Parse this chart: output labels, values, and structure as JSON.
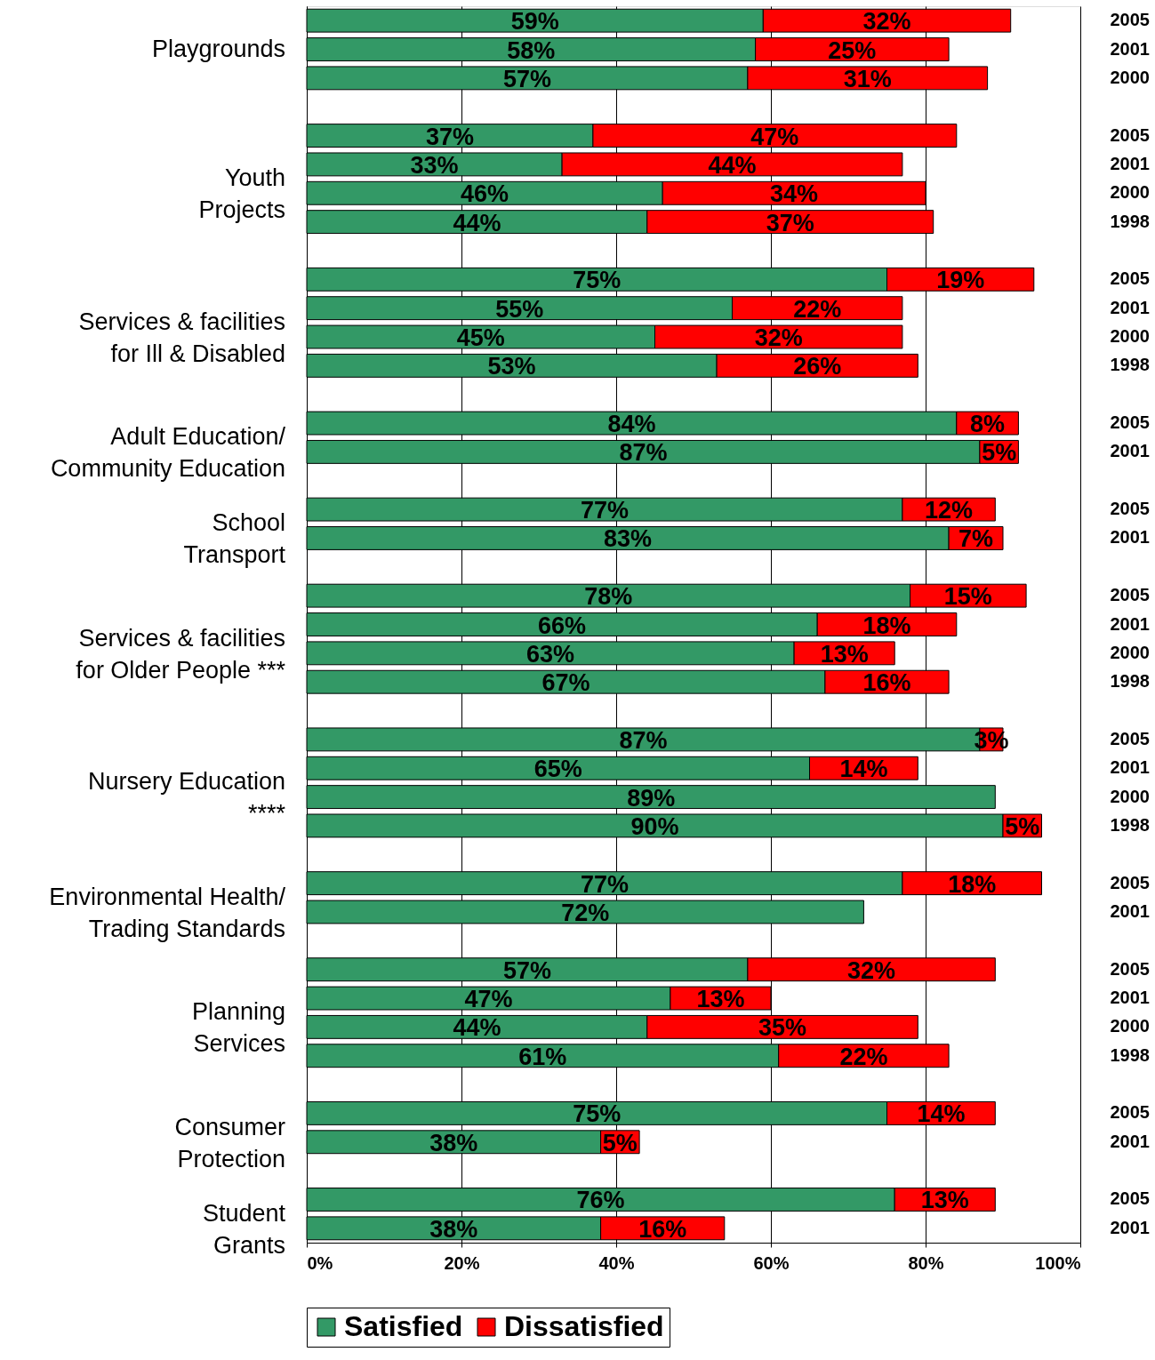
{
  "chart_data": {
    "type": "bar",
    "orientation": "horizontal",
    "stacked": true,
    "categories": [
      "2005",
      "2001",
      "2000",
      null,
      "2005",
      "2001",
      "2000",
      "1998",
      null,
      "2005",
      "2001",
      "2000",
      "1998",
      null,
      "2005",
      "2001",
      null,
      "2005",
      "2001",
      null,
      "2005",
      "2001",
      "2000",
      "1998",
      null,
      "2005",
      "2001",
      "2000",
      "1998",
      null,
      "2005",
      "2001",
      null,
      "2005",
      "2001",
      "2000",
      "1998",
      null,
      "2005",
      "2001",
      null,
      "2005",
      "2001"
    ],
    "series": [
      {
        "name": "Satisfied",
        "color": "#339966",
        "values": [
          59,
          58,
          57,
          null,
          37,
          33,
          46,
          44,
          null,
          75,
          55,
          45,
          53,
          null,
          84,
          87,
          null,
          77,
          83,
          null,
          78,
          66,
          63,
          67,
          null,
          87,
          65,
          89,
          90,
          null,
          77,
          72,
          null,
          57,
          47,
          44,
          61,
          null,
          75,
          38,
          null,
          76,
          38
        ],
        "value_labels": [
          "59%",
          "58%",
          "57%",
          null,
          "37%",
          "33%",
          "46%",
          "44%",
          null,
          "75%",
          "55%",
          "45%",
          "53%",
          null,
          "84%",
          "87%",
          null,
          "77%",
          "83%",
          null,
          "78%",
          "66%",
          "63%",
          "67%",
          null,
          "87%",
          "65%",
          "89%",
          "90%",
          null,
          "77%",
          "72%",
          null,
          "57%",
          "47%",
          "44%",
          "61%",
          null,
          "75%",
          "38%",
          null,
          "76%",
          "38%"
        ]
      },
      {
        "name": "Dissatisfied",
        "color": "#ff0000",
        "values": [
          32,
          25,
          31,
          null,
          47,
          44,
          34,
          37,
          null,
          19,
          22,
          32,
          26,
          null,
          8,
          5,
          null,
          12,
          7,
          null,
          15,
          18,
          13,
          16,
          null,
          3,
          14,
          null,
          5,
          null,
          18,
          null,
          null,
          32,
          13,
          35,
          22,
          null,
          14,
          5,
          null,
          13,
          16
        ],
        "value_labels": [
          "32%",
          "25%",
          "31%",
          null,
          "47%",
          "44%",
          "34%",
          "37%",
          null,
          "19%",
          "22%",
          "32%",
          "26%",
          null,
          "8%",
          "5%",
          null,
          "12%",
          "7%",
          null,
          "15%",
          "18%",
          "13%",
          "16%",
          null,
          "3%",
          "14%",
          null,
          "5%",
          null,
          "18%",
          null,
          null,
          "32%",
          "13%",
          "35%",
          "22%",
          null,
          "14%",
          "5%",
          null,
          "13%",
          "16%"
        ]
      }
    ],
    "annotations": [
      "Playgrounds",
      "Youth\nProjects",
      "Services & facilities\nfor Ill & Disabled",
      "Adult Education/\nCommunity Education",
      "School\nTransport",
      "Services & facilities\nfor Older People ***",
      "Nursery Education\n****",
      "Environmental Health/\nTrading Standards",
      "Planning\nServices",
      "Consumer\nProtection",
      "Student\nGrants"
    ],
    "xlim": [
      0,
      100
    ],
    "xticks": [
      {
        "value": 0,
        "label": "0%"
      },
      {
        "value": 20,
        "label": "20%"
      },
      {
        "value": 40,
        "label": "40%"
      },
      {
        "value": 60,
        "label": "60%"
      },
      {
        "value": 80,
        "label": "80%"
      },
      {
        "value": 100,
        "label": "100%"
      }
    ],
    "grid": "x",
    "legend": "bottom"
  }
}
